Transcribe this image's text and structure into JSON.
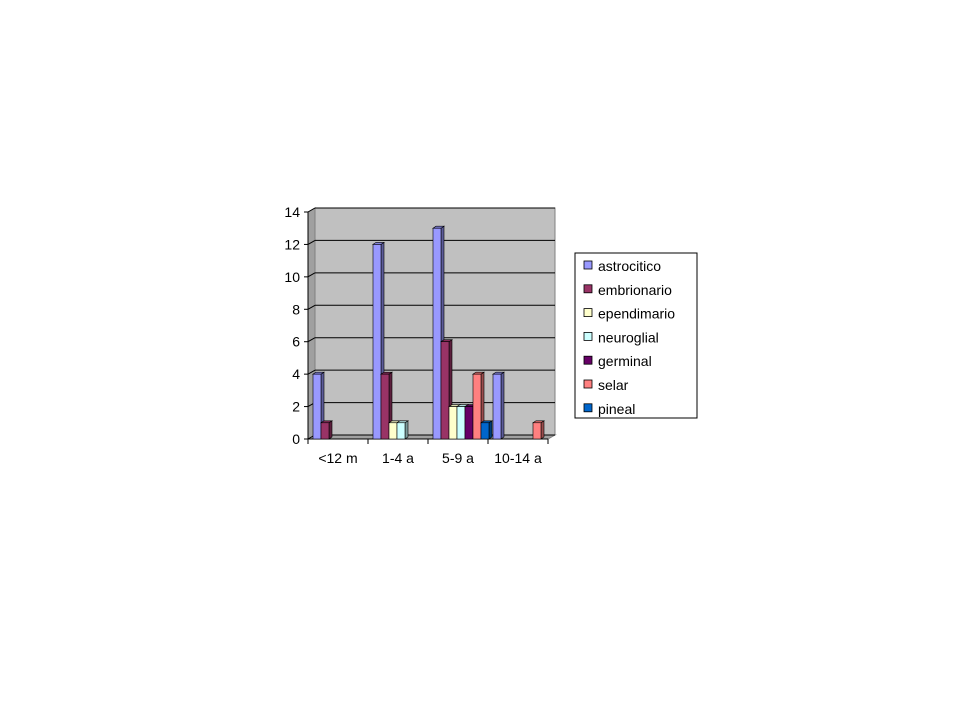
{
  "chart_data": {
    "type": "bar",
    "title": "",
    "xlabel": "",
    "ylabel": "",
    "categories": [
      "<12 m",
      "1-4 a",
      "5-9 a",
      "10-14 a"
    ],
    "ylim": [
      0,
      14
    ],
    "yticks": [
      "0",
      "2",
      "4",
      "6",
      "8",
      "10",
      "12",
      "14"
    ],
    "grid": true,
    "three_d": true,
    "plot_background": "#c0c0c0",
    "legend_position": "right",
    "series": [
      {
        "name": "astrocitico",
        "color": "#9999ff",
        "values": [
          4,
          12,
          13,
          4
        ]
      },
      {
        "name": "embrionario",
        "color": "#993366",
        "values": [
          1,
          4,
          6,
          0
        ]
      },
      {
        "name": "ependimario",
        "color": "#ffffcc",
        "values": [
          0,
          1,
          2,
          0
        ]
      },
      {
        "name": "neuroglial",
        "color": "#ccffff",
        "values": [
          0,
          1,
          2,
          0
        ]
      },
      {
        "name": "germinal",
        "color": "#660066",
        "values": [
          0,
          0,
          2,
          0
        ]
      },
      {
        "name": "selar",
        "color": "#ff8080",
        "values": [
          0,
          0,
          4,
          1
        ]
      },
      {
        "name": "pineal",
        "color": "#0066cc",
        "values": [
          0,
          0,
          1,
          0
        ]
      }
    ]
  }
}
